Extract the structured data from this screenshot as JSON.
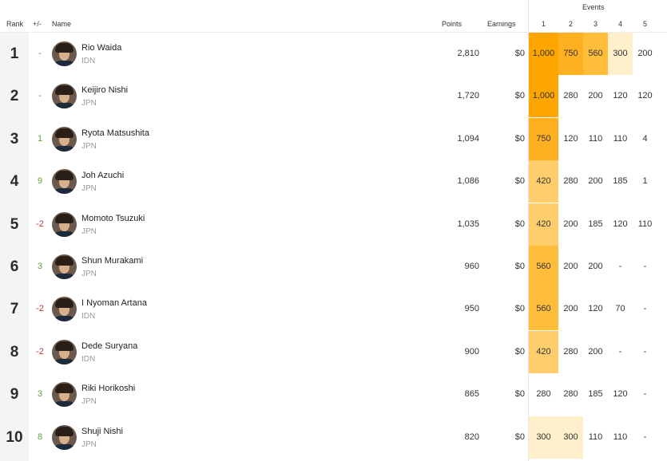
{
  "header": {
    "rank": "Rank",
    "delta": "+/-",
    "name": "Name",
    "points": "Points",
    "earnings": "Earnings",
    "events": "Events",
    "event_cols": [
      "1",
      "2",
      "3",
      "4",
      "5"
    ]
  },
  "colors": {
    "heat_1000": "#ffa500",
    "heat_750": "#ffb020",
    "heat_560": "#ffbd3a",
    "heat_420": "#ffcd6c",
    "heat_300": "#ffefcb",
    "up": "#5aa33b",
    "down": "#b43a3a"
  },
  "rows": [
    {
      "rank": "1",
      "delta": "-",
      "name": "Rio Waida",
      "country": "IDN",
      "points": "2,810",
      "earnings": "$0",
      "events": [
        "1,000",
        "750",
        "560",
        "300",
        "200"
      ]
    },
    {
      "rank": "2",
      "delta": "-",
      "name": "Keijiro Nishi",
      "country": "JPN",
      "points": "1,720",
      "earnings": "$0",
      "events": [
        "1,000",
        "280",
        "200",
        "120",
        "120"
      ]
    },
    {
      "rank": "3",
      "delta": "1",
      "name": "Ryota Matsushita",
      "country": "JPN",
      "points": "1,094",
      "earnings": "$0",
      "events": [
        "750",
        "120",
        "110",
        "110",
        "4"
      ]
    },
    {
      "rank": "4",
      "delta": "9",
      "name": "Joh Azuchi",
      "country": "JPN",
      "points": "1,086",
      "earnings": "$0",
      "events": [
        "420",
        "280",
        "200",
        "185",
        "1"
      ]
    },
    {
      "rank": "5",
      "delta": "-2",
      "name": "Momoto Tsuzuki",
      "country": "JPN",
      "points": "1,035",
      "earnings": "$0",
      "events": [
        "420",
        "200",
        "185",
        "120",
        "110"
      ]
    },
    {
      "rank": "6",
      "delta": "3",
      "name": "Shun Murakami",
      "country": "JPN",
      "points": "960",
      "earnings": "$0",
      "events": [
        "560",
        "200",
        "200",
        "-",
        "-"
      ]
    },
    {
      "rank": "7",
      "delta": "-2",
      "name": "I Nyoman Artana",
      "country": "IDN",
      "points": "950",
      "earnings": "$0",
      "events": [
        "560",
        "200",
        "120",
        "70",
        "-"
      ]
    },
    {
      "rank": "8",
      "delta": "-2",
      "name": "Dede Suryana",
      "country": "IDN",
      "points": "900",
      "earnings": "$0",
      "events": [
        "420",
        "280",
        "200",
        "-",
        "-"
      ]
    },
    {
      "rank": "9",
      "delta": "3",
      "name": "Riki Horikoshi",
      "country": "JPN",
      "points": "865",
      "earnings": "$0",
      "events": [
        "280",
        "280",
        "185",
        "120",
        "-"
      ]
    },
    {
      "rank": "10",
      "delta": "8",
      "name": "Shuji Nishi",
      "country": "JPN",
      "points": "820",
      "earnings": "$0",
      "events": [
        "300",
        "300",
        "110",
        "110",
        "-"
      ]
    }
  ]
}
